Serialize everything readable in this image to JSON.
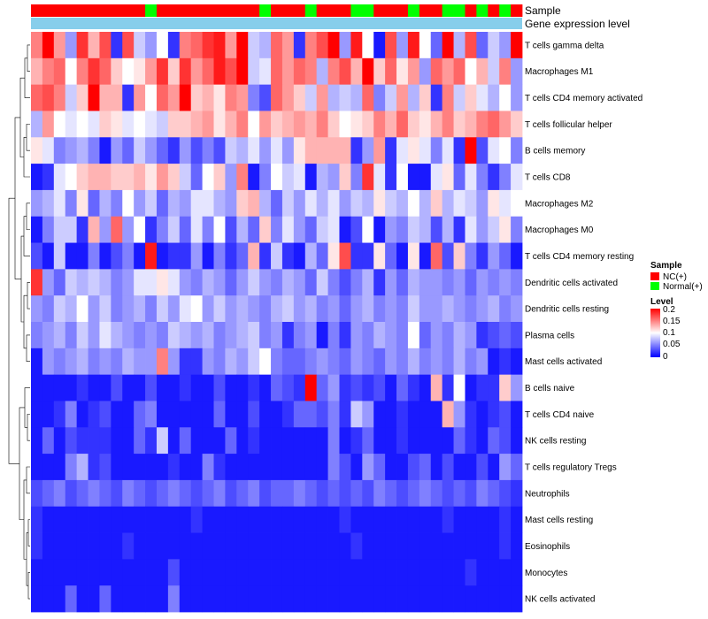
{
  "chart_data": {
    "type": "heatmap",
    "annotation_labels": [
      "Sample",
      "Gene expression level"
    ],
    "rows": [
      "T cells gamma delta",
      "Macrophages M1",
      "T cells CD4 memory activated",
      "T cells follicular helper",
      "B cells memory",
      "T cells CD8",
      "Macrophages M2",
      "Macrophages M0",
      "T cells CD4 memory resting",
      "Dendritic cells activated",
      "Dendritic cells resting",
      "Plasma cells",
      "Mast cells activated",
      "B cells naive",
      "T cells CD4 naive",
      "NK cells resting",
      "T cells regulatory  Tregs",
      "Neutrophils",
      "Mast cells resting",
      "Eosinophils",
      "Monocytes",
      "NK cells activated"
    ],
    "sample_groups": [
      "NC",
      "NC",
      "NC",
      "NC",
      "NC",
      "NC",
      "NC",
      "NC",
      "NC",
      "NC",
      "Normal",
      "NC",
      "NC",
      "NC",
      "NC",
      "NC",
      "NC",
      "NC",
      "NC",
      "NC",
      "Normal",
      "NC",
      "NC",
      "NC",
      "Normal",
      "NC",
      "NC",
      "NC",
      "Normal",
      "Normal",
      "NC",
      "NC",
      "NC",
      "Normal",
      "NC",
      "NC",
      "Normal",
      "Normal",
      "NC",
      "Normal",
      "NC",
      "Normal",
      "NC"
    ],
    "legend": {
      "sample_title": "Sample",
      "sample_entries": [
        {
          "label": "NC(+)",
          "color": "#ff0000"
        },
        {
          "label": "Normal(+)",
          "color": "#00ff00"
        }
      ],
      "level_title": "Level",
      "level_ticks": [
        "0.2",
        "0.15",
        "0.1",
        "0.05",
        "0"
      ],
      "level_min": 0,
      "level_max": 0.2
    },
    "colors": {
      "low": "#0000ff",
      "mid": "#ffffff",
      "high": "#ff0000",
      "nc": "#ff0000",
      "normal": "#00ff00",
      "expression_bar": "#87ceeb"
    },
    "values": [
      [
        0.15,
        0.2,
        0.14,
        0.06,
        0.18,
        0.13,
        0.17,
        0.02,
        0.17,
        0.08,
        0.06,
        0.1,
        0.02,
        0.15,
        0.16,
        0.18,
        0.19,
        0.14,
        0.2,
        0.08,
        0.07,
        0.16,
        0.14,
        0.02,
        0.15,
        0.17,
        0.2,
        0.06,
        0.19,
        0.1,
        0.01,
        0.17,
        0.06,
        0.19,
        0.1,
        0.04,
        0.2,
        0.07,
        0.17,
        0.04,
        0.08,
        0.06,
        0.2
      ],
      [
        0.13,
        0.15,
        0.16,
        0.1,
        0.15,
        0.18,
        0.16,
        0.12,
        0.1,
        0.11,
        0.14,
        0.18,
        0.12,
        0.18,
        0.14,
        0.16,
        0.19,
        0.17,
        0.2,
        0.08,
        0.09,
        0.16,
        0.14,
        0.16,
        0.15,
        0.07,
        0.15,
        0.17,
        0.13,
        0.2,
        0.12,
        0.16,
        0.11,
        0.14,
        0.06,
        0.16,
        0.14,
        0.16,
        0.1,
        0.13,
        0.08,
        0.15,
        0.06
      ],
      [
        0.16,
        0.17,
        0.15,
        0.08,
        0.12,
        0.2,
        0.13,
        0.13,
        0.02,
        0.14,
        0.1,
        0.16,
        0.14,
        0.2,
        0.12,
        0.13,
        0.11,
        0.15,
        0.14,
        0.05,
        0.03,
        0.16,
        0.14,
        0.12,
        0.08,
        0.14,
        0.07,
        0.08,
        0.07,
        0.16,
        0.05,
        0.08,
        0.14,
        0.07,
        0.12,
        0.02,
        0.15,
        0.08,
        0.12,
        0.09,
        0.07,
        0.1,
        0.06
      ],
      [
        0.07,
        0.14,
        0.1,
        0.09,
        0.1,
        0.09,
        0.12,
        0.11,
        0.09,
        0.1,
        0.09,
        0.08,
        0.12,
        0.12,
        0.13,
        0.14,
        0.11,
        0.13,
        0.15,
        0.1,
        0.14,
        0.12,
        0.13,
        0.14,
        0.13,
        0.15,
        0.12,
        0.1,
        0.11,
        0.12,
        0.15,
        0.13,
        0.16,
        0.12,
        0.11,
        0.13,
        0.15,
        0.12,
        0.13,
        0.15,
        0.16,
        0.14,
        0.12
      ],
      [
        0.11,
        0.09,
        0.05,
        0.06,
        0.07,
        0.05,
        0.01,
        0.06,
        0.04,
        0.08,
        0.06,
        0.04,
        0.02,
        0.06,
        0.03,
        0.05,
        0.03,
        0.08,
        0.07,
        0.09,
        0.06,
        0.09,
        0.06,
        0.11,
        0.13,
        0.13,
        0.13,
        0.13,
        0.02,
        0.06,
        0.14,
        0.02,
        0.09,
        0.11,
        0.09,
        0.05,
        0.09,
        0.02,
        0.2,
        0.03,
        0.09,
        0.1,
        0.05
      ],
      [
        0.01,
        0.02,
        0.09,
        0.1,
        0.12,
        0.13,
        0.13,
        0.12,
        0.12,
        0.13,
        0.11,
        0.14,
        0.12,
        0.08,
        0.04,
        0.1,
        0.12,
        0.06,
        0.15,
        0.01,
        0.05,
        0.1,
        0.08,
        0.09,
        0.01,
        0.07,
        0.06,
        0.12,
        0.05,
        0.18,
        0.09,
        0.02,
        0.1,
        0.01,
        0.01,
        0.09,
        0.11,
        0.04,
        0.09,
        0.05,
        0.02,
        0.05,
        0.09
      ],
      [
        0.06,
        0.07,
        0.09,
        0.05,
        0.11,
        0.04,
        0.07,
        0.05,
        0.1,
        0.06,
        0.08,
        0.04,
        0.07,
        0.06,
        0.09,
        0.09,
        0.07,
        0.06,
        0.12,
        0.13,
        0.07,
        0.04,
        0.08,
        0.06,
        0.09,
        0.07,
        0.09,
        0.06,
        0.08,
        0.07,
        0.11,
        0.08,
        0.07,
        0.1,
        0.07,
        0.12,
        0.07,
        0.09,
        0.08,
        0.06,
        0.11,
        0.09,
        0.1
      ],
      [
        0.01,
        0.05,
        0.08,
        0.08,
        0.02,
        0.13,
        0.06,
        0.16,
        0.06,
        0.1,
        0.02,
        0.05,
        0.08,
        0.04,
        0.09,
        0.05,
        0.1,
        0.03,
        0.07,
        0.04,
        0.12,
        0.05,
        0.09,
        0.06,
        0.04,
        0.08,
        0.09,
        0.01,
        0.03,
        0.1,
        0.01,
        0.06,
        0.05,
        0.08,
        0.07,
        0.03,
        0.07,
        0.02,
        0.09,
        0.06,
        0.08,
        0.11,
        0.05
      ],
      [
        0.03,
        0.01,
        0.08,
        0.01,
        0.01,
        0.05,
        0.01,
        0.03,
        0.05,
        0.01,
        0.19,
        0.01,
        0.02,
        0.02,
        0.06,
        0.01,
        0.05,
        0.02,
        0.04,
        0.13,
        0.02,
        0.08,
        0.02,
        0.01,
        0.07,
        0.04,
        0.11,
        0.17,
        0.02,
        0.02,
        0.11,
        0.04,
        0.01,
        0.11,
        0.01,
        0.16,
        0.03,
        0.12,
        0.05,
        0.02,
        0.06,
        0.04,
        0.01
      ],
      [
        0.18,
        0.06,
        0.04,
        0.08,
        0.07,
        0.08,
        0.07,
        0.05,
        0.06,
        0.09,
        0.09,
        0.11,
        0.09,
        0.06,
        0.05,
        0.07,
        0.06,
        0.04,
        0.06,
        0.08,
        0.06,
        0.05,
        0.07,
        0.06,
        0.04,
        0.08,
        0.05,
        0.03,
        0.05,
        0.07,
        0.02,
        0.06,
        0.04,
        0.07,
        0.06,
        0.06,
        0.05,
        0.06,
        0.04,
        0.06,
        0.05,
        0.06,
        0.05
      ],
      [
        0.06,
        0.05,
        0.08,
        0.07,
        0.1,
        0.06,
        0.08,
        0.05,
        0.06,
        0.07,
        0.05,
        0.08,
        0.06,
        0.09,
        0.1,
        0.06,
        0.08,
        0.06,
        0.07,
        0.06,
        0.05,
        0.07,
        0.08,
        0.06,
        0.07,
        0.05,
        0.06,
        0.04,
        0.06,
        0.07,
        0.05,
        0.06,
        0.05,
        0.08,
        0.06,
        0.06,
        0.07,
        0.06,
        0.05,
        0.06,
        0.07,
        0.05,
        0.06
      ],
      [
        0.05,
        0.06,
        0.07,
        0.05,
        0.08,
        0.06,
        0.09,
        0.07,
        0.06,
        0.05,
        0.06,
        0.05,
        0.08,
        0.07,
        0.06,
        0.07,
        0.05,
        0.06,
        0.07,
        0.08,
        0.05,
        0.06,
        0.02,
        0.05,
        0.06,
        0.01,
        0.05,
        0.02,
        0.06,
        0.05,
        0.07,
        0.06,
        0.05,
        0.1,
        0.04,
        0.06,
        0.05,
        0.07,
        0.06,
        0.02,
        0.03,
        0.04,
        0.03
      ],
      [
        0.01,
        0.06,
        0.05,
        0.06,
        0.07,
        0.05,
        0.06,
        0.05,
        0.07,
        0.06,
        0.06,
        0.15,
        0.06,
        0.02,
        0.02,
        0.06,
        0.05,
        0.07,
        0.06,
        0.08,
        0.1,
        0.05,
        0.04,
        0.04,
        0.05,
        0.06,
        0.05,
        0.04,
        0.06,
        0.05,
        0.04,
        0.06,
        0.05,
        0.07,
        0.05,
        0.06,
        0.05,
        0.07,
        0.05,
        0.06,
        0.01,
        0.02,
        0.01
      ],
      [
        0.01,
        0.01,
        0.01,
        0.01,
        0.02,
        0.01,
        0.01,
        0.03,
        0.01,
        0.01,
        0.03,
        0.01,
        0.01,
        0.02,
        0.01,
        0.01,
        0.03,
        0.01,
        0.01,
        0.02,
        0.01,
        0.04,
        0.03,
        0.02,
        0.2,
        0.04,
        0.06,
        0.02,
        0.03,
        0.02,
        0.03,
        0.01,
        0.04,
        0.02,
        0.01,
        0.13,
        0.02,
        0.1,
        0.01,
        0.02,
        0.02,
        0.12,
        0.06
      ],
      [
        0.01,
        0.01,
        0.02,
        0.05,
        0.01,
        0.02,
        0.03,
        0.01,
        0.01,
        0.04,
        0.05,
        0.01,
        0.01,
        0.01,
        0.01,
        0.01,
        0.04,
        0.01,
        0.01,
        0.03,
        0.01,
        0.01,
        0.02,
        0.04,
        0.04,
        0.03,
        0.05,
        0.02,
        0.08,
        0.06,
        0.01,
        0.01,
        0.02,
        0.01,
        0.01,
        0.01,
        0.13,
        0.06,
        0.02,
        0.01,
        0.02,
        0.03,
        0.01
      ],
      [
        0.01,
        0.04,
        0.01,
        0.03,
        0.02,
        0.02,
        0.02,
        0.01,
        0.01,
        0.04,
        0.02,
        0.08,
        0.01,
        0.04,
        0.01,
        0.01,
        0.01,
        0.04,
        0.01,
        0.02,
        0.01,
        0.01,
        0.01,
        0.01,
        0.01,
        0.01,
        0.05,
        0.01,
        0.02,
        0.04,
        0.01,
        0.01,
        0.02,
        0.01,
        0.01,
        0.01,
        0.01,
        0.04,
        0.02,
        0.01,
        0.04,
        0.03,
        0.01
      ],
      [
        0.01,
        0.01,
        0.01,
        0.05,
        0.07,
        0.02,
        0.03,
        0.01,
        0.01,
        0.01,
        0.01,
        0.01,
        0.02,
        0.01,
        0.01,
        0.05,
        0.02,
        0.01,
        0.01,
        0.01,
        0.01,
        0.01,
        0.01,
        0.01,
        0.01,
        0.01,
        0.05,
        0.03,
        0.01,
        0.06,
        0.04,
        0.01,
        0.01,
        0.03,
        0.04,
        0.01,
        0.03,
        0.01,
        0.01,
        0.03,
        0.01,
        0.06,
        0.04
      ],
      [
        0.03,
        0.04,
        0.05,
        0.03,
        0.04,
        0.05,
        0.04,
        0.03,
        0.05,
        0.04,
        0.03,
        0.04,
        0.05,
        0.04,
        0.03,
        0.04,
        0.05,
        0.03,
        0.04,
        0.05,
        0.03,
        0.04,
        0.04,
        0.05,
        0.04,
        0.03,
        0.04,
        0.03,
        0.04,
        0.03,
        0.05,
        0.04,
        0.03,
        0.04,
        0.05,
        0.04,
        0.03,
        0.04,
        0.03,
        0.05,
        0.04,
        0.03,
        0.02
      ],
      [
        0.02,
        0.01,
        0.01,
        0.01,
        0.01,
        0.01,
        0.01,
        0.01,
        0.01,
        0.01,
        0.01,
        0.01,
        0.01,
        0.01,
        0.02,
        0.01,
        0.01,
        0.01,
        0.01,
        0.01,
        0.01,
        0.01,
        0.01,
        0.01,
        0.01,
        0.01,
        0.01,
        0.02,
        0.01,
        0.01,
        0.01,
        0.01,
        0.01,
        0.01,
        0.01,
        0.01,
        0.02,
        0.01,
        0.01,
        0.01,
        0.01,
        0.02,
        0.01
      ],
      [
        0.02,
        0.01,
        0.01,
        0.01,
        0.01,
        0.01,
        0.01,
        0.01,
        0.02,
        0.01,
        0.01,
        0.01,
        0.01,
        0.01,
        0.01,
        0.01,
        0.01,
        0.01,
        0.01,
        0.01,
        0.01,
        0.01,
        0.01,
        0.01,
        0.01,
        0.01,
        0.01,
        0.01,
        0.02,
        0.01,
        0.01,
        0.01,
        0.01,
        0.01,
        0.01,
        0.01,
        0.01,
        0.01,
        0.01,
        0.01,
        0.01,
        0.02,
        0.01
      ],
      [
        0.01,
        0.01,
        0.01,
        0.01,
        0.01,
        0.01,
        0.01,
        0.01,
        0.01,
        0.01,
        0.01,
        0.01,
        0.03,
        0.01,
        0.01,
        0.01,
        0.01,
        0.01,
        0.01,
        0.01,
        0.01,
        0.01,
        0.01,
        0.01,
        0.01,
        0.01,
        0.01,
        0.01,
        0.01,
        0.01,
        0.01,
        0.01,
        0.01,
        0.01,
        0.01,
        0.01,
        0.01,
        0.01,
        0.02,
        0.01,
        0.01,
        0.01,
        0.01
      ],
      [
        0.01,
        0.01,
        0.01,
        0.04,
        0.01,
        0.01,
        0.04,
        0.01,
        0.01,
        0.01,
        0.01,
        0.01,
        0.05,
        0.01,
        0.01,
        0.01,
        0.01,
        0.01,
        0.01,
        0.01,
        0.01,
        0.01,
        0.01,
        0.01,
        0.01,
        0.01,
        0.01,
        0.01,
        0.01,
        0.01,
        0.01,
        0.01,
        0.01,
        0.01,
        0.01,
        0.01,
        0.01,
        0.01,
        0.01,
        0.01,
        0.01,
        0.01,
        0.01
      ]
    ]
  }
}
